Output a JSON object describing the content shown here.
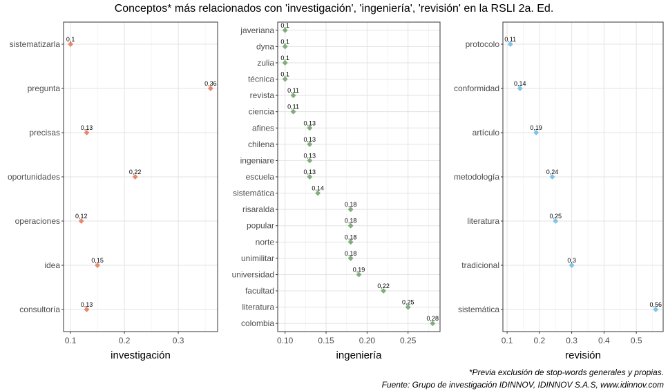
{
  "title": "Conceptos* más relacionados con 'investigación', 'ingeniería', 'revisión' en la RSLI 2a. Ed.",
  "footnotes": [
    "*Previa exclusión de stop-words generales y propias.",
    "Fuente: Grupo de investigación IDINNOV, IDINNOV S.A.S, www.idinnov.com"
  ],
  "chart_data": [
    {
      "type": "scatter",
      "xlabel": "investigación",
      "color": "#e8896d",
      "xticks": [
        0.1,
        0.2,
        0.3
      ],
      "xtick_labels": [
        "0.1",
        "0.2",
        "0.3"
      ],
      "xlim": [
        0.087,
        0.373
      ],
      "grid": true,
      "categories": [
        "sistematizarla",
        "pregunta",
        "precisas",
        "oportunidades",
        "operaciones",
        "idea",
        "consultoría"
      ],
      "values": [
        0.1,
        0.36,
        0.13,
        0.22,
        0.12,
        0.15,
        0.13
      ],
      "labels": [
        "0,1",
        "0,36",
        "0,13",
        "0,22",
        "0,12",
        "0,15",
        "0,13"
      ]
    },
    {
      "type": "scatter",
      "xlabel": "ingeniería",
      "color": "#7fae7a",
      "xticks": [
        0.1,
        0.15,
        0.2,
        0.25
      ],
      "xtick_labels": [
        "0.10",
        "0.15",
        "0.20",
        "0.25"
      ],
      "xlim": [
        0.091,
        0.289
      ],
      "grid": true,
      "categories": [
        "javeriana",
        "dyna",
        "zulia",
        "técnica",
        "revista",
        "ciencia",
        "afines",
        "chilena",
        "ingeniare",
        "escuela",
        "sistemática",
        "risaralda",
        "popular",
        "norte",
        "unimilitar",
        "universidad",
        "facultad",
        "literatura",
        "colombia"
      ],
      "values": [
        0.1,
        0.1,
        0.1,
        0.1,
        0.11,
        0.11,
        0.13,
        0.13,
        0.13,
        0.13,
        0.14,
        0.18,
        0.18,
        0.18,
        0.18,
        0.19,
        0.22,
        0.25,
        0.28
      ],
      "labels": [
        "0,1",
        "0,1",
        "0,1",
        "0,1",
        "0,11",
        "0,11",
        "0,13",
        "0,13",
        "0,13",
        "0,13",
        "0,14",
        "0,18",
        "0,18",
        "0,18",
        "0,18",
        "0,19",
        "0,22",
        "0,25",
        "0,28"
      ]
    },
    {
      "type": "scatter",
      "xlabel": "revisión",
      "color": "#7cc4e8",
      "xticks": [
        0.1,
        0.2,
        0.3,
        0.4,
        0.5
      ],
      "xtick_labels": [
        "0.1",
        "0.2",
        "0.3",
        "0.4",
        "0.5"
      ],
      "xlim": [
        0.087,
        0.583
      ],
      "grid": true,
      "categories": [
        "protocolo",
        "conformidad",
        "artículo",
        "metodología",
        "literatura",
        "tradicional",
        "sistemática"
      ],
      "values": [
        0.11,
        0.14,
        0.19,
        0.24,
        0.25,
        0.3,
        0.56
      ],
      "labels": [
        "0,11",
        "0,14",
        "0,19",
        "0,24",
        "0,25",
        "0,3",
        "0,56"
      ]
    }
  ]
}
